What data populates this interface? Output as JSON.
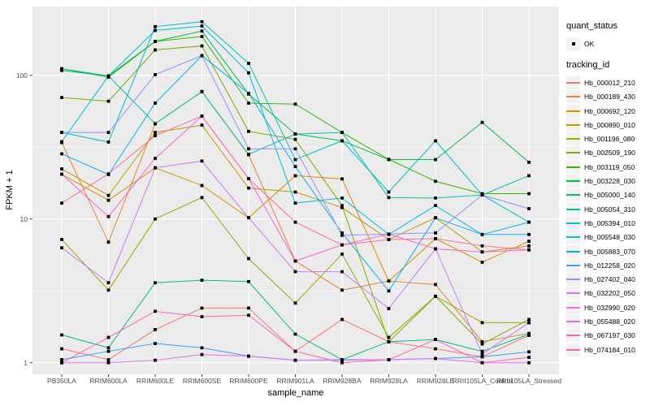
{
  "axes": {
    "x_title": "sample_name",
    "y_title": "FPKM + 1",
    "y_tick_labels": [
      "1",
      "10",
      "100"
    ]
  },
  "legend": {
    "quant_title": "quant_status",
    "quant_items": [
      {
        "label": "OK",
        "symbol": "black-point"
      }
    ],
    "tracking_title": "tracking_id"
  },
  "chart_data": {
    "type": "line",
    "title": "",
    "xlabel": "sample_name",
    "ylabel": "FPKM + 1",
    "y_scale": "log10",
    "y_ticks": [
      1,
      10,
      100
    ],
    "y_minor_ticks": [
      3.162,
      31.62
    ],
    "ylim": [
      0.92,
      290
    ],
    "grid": true,
    "legend_position": "right",
    "point_shape": "small-black-square",
    "panel_background": "#EBEBEB",
    "gridline_color": "#FFFFFF",
    "categories": [
      "PB350LA",
      "RRIM600LA",
      "RRIM600LE",
      "RRIM600SE",
      "RRIM600PE",
      "RRIM901LA",
      "RRIM928BA",
      "RRIM928LA",
      "RRIM928LE",
      "RRII105LA_Control",
      "RRII105LA_Stressed"
    ],
    "series": [
      {
        "name": "Hb_000012_210",
        "color": "#F8766D",
        "values": [
          1.25,
          1.05,
          1.7,
          2.4,
          2.4,
          1.2,
          2.0,
          1.4,
          1.25,
          1.1,
          1.55
        ]
      },
      {
        "name": "Hb_000189_430",
        "color": "#EA8331",
        "values": [
          34,
          6.9,
          46,
          77,
          28,
          5.1,
          3.2,
          3.7,
          3.5,
          1.4,
          1.6
        ]
      },
      {
        "name": "Hb_000692_120",
        "color": "#D89000",
        "values": [
          20.5,
          13.5,
          22.7,
          17.1,
          10.2,
          20,
          19,
          3.7,
          7.3,
          5.0,
          7.0
        ]
      },
      {
        "name": "Hb_000890_010",
        "color": "#C09B00",
        "values": [
          22.3,
          14.6,
          40,
          45,
          16.4,
          15.4,
          12,
          7.2,
          10.2,
          5.9,
          6.5
        ]
      },
      {
        "name": "Hb_001196_080",
        "color": "#A3A500",
        "values": [
          7.2,
          3.2,
          10,
          14.1,
          5.3,
          2.6,
          5.7,
          1.5,
          2.9,
          1.9,
          1.9
        ]
      },
      {
        "name": "Hb_002509_190",
        "color": "#7CAE00",
        "values": [
          70,
          66,
          150,
          160,
          40.7,
          35.8,
          12.4,
          1.4,
          2.9,
          1.35,
          2.0
        ]
      },
      {
        "name": "Hb_003119_050",
        "color": "#39B600",
        "values": [
          111,
          97,
          172,
          186,
          64,
          63,
          40,
          26,
          18.3,
          15,
          15
        ]
      },
      {
        "name": "Hb_003228_030",
        "color": "#00BB4E",
        "values": [
          108,
          99,
          172,
          203,
          74,
          39,
          35,
          25.9,
          25.9,
          47,
          24.8
        ]
      },
      {
        "name": "Hb_005000_140",
        "color": "#00BF7D",
        "values": [
          1.56,
          1.27,
          3.6,
          3.75,
          3.67,
          1.58,
          1.05,
          1.4,
          1.45,
          1.2,
          1.58
        ]
      },
      {
        "name": "Hb_005054_310",
        "color": "#00C1A3",
        "values": [
          111,
          99,
          46,
          77,
          28.2,
          39,
          40,
          14.1,
          14,
          14.7,
          20
        ]
      },
      {
        "name": "Hb_005394_010",
        "color": "#00BFC4",
        "values": [
          40,
          34.3,
          218,
          236,
          121,
          25.9,
          35,
          15.4,
          35,
          14.7,
          9.5
        ]
      },
      {
        "name": "Hb_005548_030",
        "color": "#00BAE0",
        "values": [
          34.5,
          99,
          205,
          220,
          104,
          12.9,
          14,
          7.8,
          12.4,
          7.8,
          9.5
        ]
      },
      {
        "name": "Hb_005883_070",
        "color": "#00B0F6",
        "values": [
          28.4,
          20.4,
          64,
          137,
          74.8,
          23.2,
          8,
          3.16,
          10.2,
          7.8,
          7.8
        ]
      },
      {
        "name": "Hb_012258_020",
        "color": "#35A2FF",
        "values": [
          1.05,
          1.2,
          1.36,
          1.27,
          1.11,
          1.04,
          1.05,
          1.05,
          1.07,
          1.1,
          1.19
        ]
      },
      {
        "name": "Hb_027402_040",
        "color": "#9590FF",
        "values": [
          40,
          40,
          101,
          137,
          30.8,
          30.8,
          7.7,
          7.85,
          8.0,
          14.7,
          11.8
        ]
      },
      {
        "name": "Hb_032202_050",
        "color": "#C77CFF",
        "values": [
          6.3,
          3.6,
          22.7,
          25.3,
          10.2,
          4.3,
          4.3,
          2.38,
          6.2,
          1.15,
          1.9
        ]
      },
      {
        "name": "Hb_032990_020",
        "color": "#E76BF3",
        "values": [
          1.0,
          1.0,
          1.04,
          1.14,
          1.11,
          1.04,
          1.04,
          1.05,
          1.07,
          1.0,
          1.0
        ]
      },
      {
        "name": "Hb_055488_020",
        "color": "#FA62DB",
        "values": [
          20.5,
          10.4,
          26.4,
          52,
          19.1,
          5.1,
          6.6,
          7.85,
          6.2,
          5.9,
          6.1
        ]
      },
      {
        "name": "Hb_067197_030",
        "color": "#FF62BC",
        "values": [
          1.0,
          1.5,
          2.28,
          2.09,
          2.14,
          1.2,
          1.0,
          1.05,
          1.45,
          1.0,
          1.09
        ]
      },
      {
        "name": "Hb_074184_010",
        "color": "#FF6A98",
        "values": [
          12.9,
          20.6,
          38,
          52,
          19.1,
          9.5,
          6.6,
          7.2,
          7.3,
          6.5,
          6.1
        ]
      }
    ]
  }
}
